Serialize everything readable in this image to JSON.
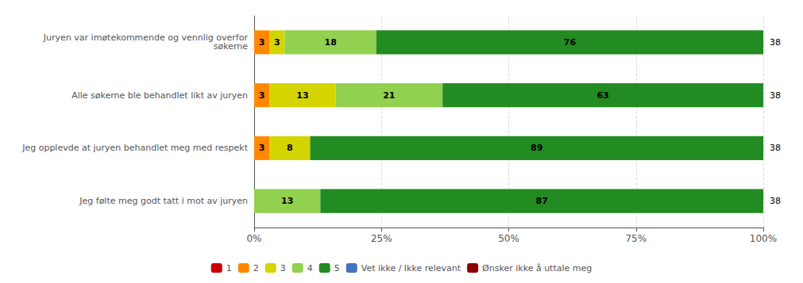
{
  "chart_data": {
    "type": "bar",
    "orientation": "horizontal",
    "stacked": true,
    "data_labels": true,
    "grid": true,
    "legend": "bottom",
    "categories": [
      "Juryen var imøtekommende og vennlig overfor\nsøkerne",
      "Alle søkerne ble behandlet likt av juryen",
      "Jeg opplevde at juryen behandlet meg med respekt",
      "Jeg følte meg godt tatt i mot av juryen"
    ],
    "series": [
      {
        "name": "1",
        "color": "#cc0000",
        "values": [
          0,
          0,
          0,
          0
        ]
      },
      {
        "name": "2",
        "color": "#ff8800",
        "values": [
          3,
          3,
          3,
          0
        ]
      },
      {
        "name": "3",
        "color": "#d4d400",
        "values": [
          3,
          13,
          8,
          0
        ]
      },
      {
        "name": "4",
        "color": "#92d050",
        "values": [
          18,
          21,
          0,
          13
        ]
      },
      {
        "name": "5",
        "color": "#228B22",
        "values": [
          76,
          63,
          89,
          87
        ]
      },
      {
        "name": "Vet ikke / Ikke relevant",
        "color": "#4472C4",
        "values": [
          0,
          0,
          0,
          0
        ]
      },
      {
        "name": "Ønsker ikke å uttale meg",
        "color": "#8B0000",
        "values": [
          0,
          0,
          0,
          0
        ]
      }
    ],
    "counts": [
      38,
      38,
      38,
      38
    ],
    "xlim": [
      0,
      100
    ],
    "xticks": [
      {
        "value": 0,
        "label": "0%"
      },
      {
        "value": 25,
        "label": "25%"
      },
      {
        "value": 50,
        "label": "50%"
      },
      {
        "value": 75,
        "label": "75%"
      },
      {
        "value": 100,
        "label": "100%"
      }
    ]
  }
}
